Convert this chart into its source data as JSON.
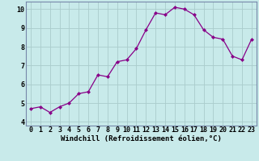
{
  "x": [
    0,
    1,
    2,
    3,
    4,
    5,
    6,
    7,
    8,
    9,
    10,
    11,
    12,
    13,
    14,
    15,
    16,
    17,
    18,
    19,
    20,
    21,
    22,
    23
  ],
  "y": [
    4.7,
    4.8,
    4.5,
    4.8,
    5.0,
    5.5,
    5.6,
    6.5,
    6.4,
    7.2,
    7.3,
    7.9,
    8.9,
    9.8,
    9.7,
    10.1,
    10.0,
    9.7,
    8.9,
    8.5,
    8.4,
    7.5,
    7.3,
    8.4
  ],
  "line_color": "#880088",
  "marker": "D",
  "marker_size": 2.0,
  "bg_color": "#c8eaea",
  "grid_color": "#aacccc",
  "xlabel": "Windchill (Refroidissement éolien,°C)",
  "xlabel_fontsize": 6.5,
  "tick_fontsize": 6.0,
  "ylim_min": 3.8,
  "ylim_max": 10.4,
  "xlim_min": -0.5,
  "xlim_max": 23.5,
  "yticks": [
    4,
    5,
    6,
    7,
    8,
    9,
    10
  ],
  "xticks": [
    0,
    1,
    2,
    3,
    4,
    5,
    6,
    7,
    8,
    9,
    10,
    11,
    12,
    13,
    14,
    15,
    16,
    17,
    18,
    19,
    20,
    21,
    22,
    23
  ],
  "spine_color": "#7788aa"
}
